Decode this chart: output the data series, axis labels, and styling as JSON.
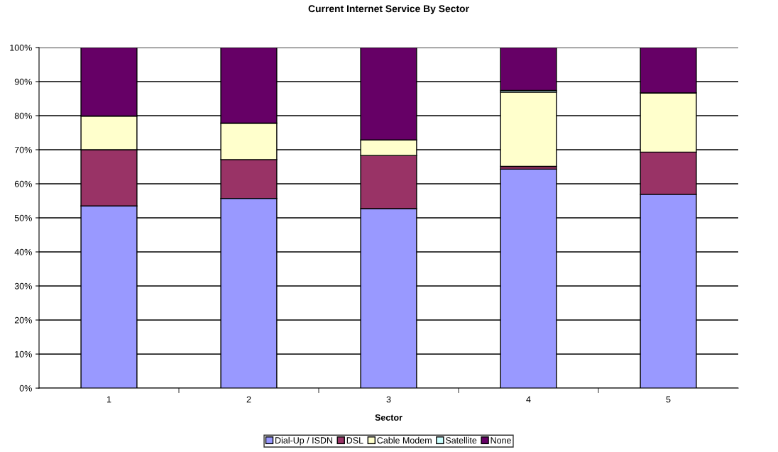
{
  "chart_data": {
    "type": "bar",
    "title": "Current Internet Service By Sector",
    "xlabel": "Sector",
    "categories": [
      "1",
      "2",
      "3",
      "4",
      "5"
    ],
    "stacked": true,
    "series": [
      {
        "name": "Dial-Up / ISDN",
        "color": "#9999ff",
        "values": [
          53.5,
          55.7,
          52.7,
          64.3,
          56.9
        ]
      },
      {
        "name": "DSL",
        "color": "#993366",
        "values": [
          16.5,
          11.4,
          15.6,
          0.8,
          12.4
        ]
      },
      {
        "name": "Cable Modem",
        "color": "#ffffcc",
        "values": [
          9.9,
          10.7,
          4.6,
          21.8,
          17.4
        ]
      },
      {
        "name": "Satellite",
        "color": "#ccffff",
        "values": [
          0,
          null,
          0,
          0.5,
          0
        ]
      },
      {
        "name": "None",
        "color": "#660066",
        "values": [
          20.1,
          22.2,
          27.1,
          12.6,
          13.3
        ]
      }
    ],
    "ylim": [
      0,
      100
    ],
    "yticks": [
      {
        "value": 0,
        "label": "0%"
      },
      {
        "value": 10,
        "label": "10%"
      },
      {
        "value": 20,
        "label": "20%"
      },
      {
        "value": 30,
        "label": "30%"
      },
      {
        "value": 40,
        "label": "40%"
      },
      {
        "value": 50,
        "label": "50%"
      },
      {
        "value": 60,
        "label": "60%"
      },
      {
        "value": 70,
        "label": "70%"
      },
      {
        "value": 80,
        "label": "80%"
      },
      {
        "value": 90,
        "label": "90%"
      },
      {
        "value": 100,
        "label": "100%"
      }
    ],
    "grid": "y",
    "legend": "bottom"
  }
}
